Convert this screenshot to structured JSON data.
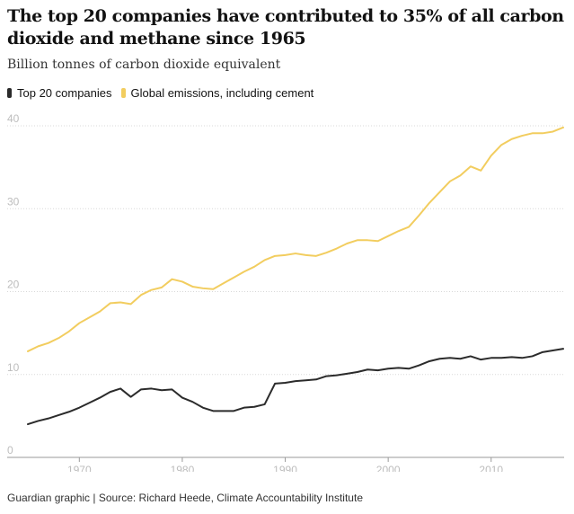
{
  "title": "The top 20 companies have contributed to 35% of all carbon dioxide and methane since 1965",
  "subtitle": "Billion tonnes of carbon dioxide equivalent",
  "footer": "Guardian graphic | Source: Richard Heede, Climate Accountability Institute",
  "colors": {
    "top20": "#2b2b2b",
    "global": "#f2cd5f",
    "grid": "#d8d8d8",
    "tick": "#bdbdbd"
  },
  "chart_data": {
    "type": "line",
    "title": "The top 20 companies have contributed to 35% of all carbon dioxide and methane since 1965",
    "subtitle": "Billion tonnes of carbon dioxide equivalent",
    "xlim": [
      1965,
      2017
    ],
    "ylim": [
      0,
      40
    ],
    "x_ticks": [
      1970,
      1980,
      1990,
      2000,
      2010
    ],
    "y_ticks": [
      0,
      10,
      20,
      30,
      40
    ],
    "grid": "horizontal dotted",
    "legend_position": "top-left",
    "x": [
      1965,
      1966,
      1967,
      1968,
      1969,
      1970,
      1971,
      1972,
      1973,
      1974,
      1975,
      1976,
      1977,
      1978,
      1979,
      1980,
      1981,
      1982,
      1983,
      1984,
      1985,
      1986,
      1987,
      1988,
      1989,
      1990,
      1991,
      1992,
      1993,
      1994,
      1995,
      1996,
      1997,
      1998,
      1999,
      2000,
      2001,
      2002,
      2003,
      2004,
      2005,
      2006,
      2007,
      2008,
      2009,
      2010,
      2011,
      2012,
      2013,
      2014,
      2015,
      2016,
      2017
    ],
    "series": [
      {
        "name": "Top 20 companies",
        "color": "#2b2b2b",
        "values": [
          4.0,
          4.4,
          4.7,
          5.1,
          5.5,
          6.0,
          6.6,
          7.2,
          7.9,
          8.3,
          7.3,
          8.2,
          8.3,
          8.1,
          8.2,
          7.2,
          6.7,
          6.0,
          5.6,
          5.6,
          5.6,
          6.0,
          6.1,
          6.4,
          8.9,
          9.0,
          9.2,
          9.3,
          9.4,
          9.8,
          9.9,
          10.1,
          10.3,
          10.6,
          10.5,
          10.7,
          10.8,
          10.7,
          11.1,
          11.6,
          11.9,
          12.0,
          11.9,
          12.2,
          11.8,
          12.0,
          12.0,
          12.1,
          12.0,
          12.2,
          12.7,
          12.9,
          13.1
        ]
      },
      {
        "name": "Global emissions, including cement",
        "color": "#f2cd5f",
        "values": [
          12.8,
          13.4,
          13.8,
          14.4,
          15.2,
          16.2,
          16.9,
          17.6,
          18.6,
          18.7,
          18.5,
          19.6,
          20.2,
          20.5,
          21.5,
          21.2,
          20.6,
          20.4,
          20.3,
          21.0,
          21.7,
          22.4,
          23.0,
          23.8,
          24.3,
          24.4,
          24.6,
          24.4,
          24.3,
          24.7,
          25.2,
          25.8,
          26.2,
          26.2,
          26.1,
          26.7,
          27.3,
          27.8,
          29.2,
          30.7,
          32.0,
          33.3,
          34.0,
          35.1,
          34.6,
          36.4,
          37.7,
          38.4,
          38.8,
          39.1,
          39.1,
          39.3,
          39.8
        ]
      }
    ]
  }
}
